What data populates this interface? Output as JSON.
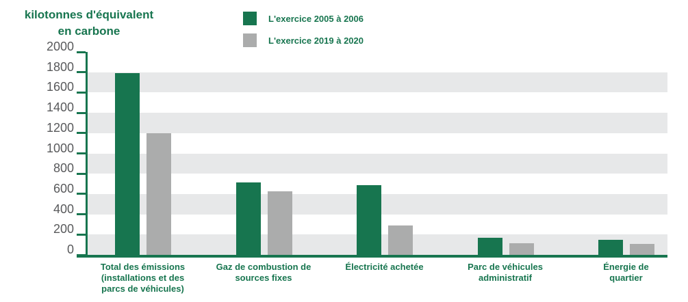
{
  "title": {
    "lines": [
      "kilotonnes d'équivalent",
      "en carbone"
    ]
  },
  "legend": {
    "items": [
      {
        "label": "L'exercice 2005 à 2006",
        "color": "#17754F"
      },
      {
        "label": "L'exercice 2019 à 2020",
        "color": "#ABACAC"
      }
    ]
  },
  "colors": {
    "accent_green": "#17754F",
    "bar_gray": "#ABACAC",
    "band_gray": "#E7E8E9",
    "tick_label_gray": "#58595B",
    "background": "#FFFFFF"
  },
  "chart_data": {
    "type": "bar",
    "title": "kilotonnes d'équivalent en carbone",
    "ylabel": "kilotonnes d'équivalent en carbone",
    "xlabel": "",
    "ylim": [
      0,
      2000
    ],
    "ytick_step": 200,
    "yticks": [
      2000,
      1800,
      1600,
      1400,
      1200,
      1000,
      800,
      600,
      400,
      200,
      0
    ],
    "grid": "alternating 200-unit horizontal gray bands, gray from 0-200 upward every other band",
    "legend_position": "top-center",
    "categories": [
      {
        "label": "Total des émissions (installations et des parcs de véhicules)",
        "lines": [
          "Total des émissions",
          "(installations et des",
          "parcs de véhicules)"
        ]
      },
      {
        "label": "Gaz de combustion de sources fixes",
        "lines": [
          "Gaz de combustion de",
          "sources fixes"
        ]
      },
      {
        "label": "Électricité achetée",
        "lines": [
          "Électricité achetée"
        ]
      },
      {
        "label": "Parc de véhicules administratif",
        "lines": [
          "Parc de véhicules",
          "administratif"
        ]
      },
      {
        "label": "Énergie de quartier",
        "lines": [
          "Énergie de",
          "quartier"
        ]
      }
    ],
    "series": [
      {
        "name": "L'exercice 2005 à 2006",
        "color": "#17754F",
        "values": [
          1790,
          715,
          690,
          170,
          150
        ]
      },
      {
        "name": "L'exercice 2019 à 2020",
        "color": "#ABACAC",
        "values": [
          1200,
          625,
          290,
          115,
          110
        ]
      }
    ]
  }
}
